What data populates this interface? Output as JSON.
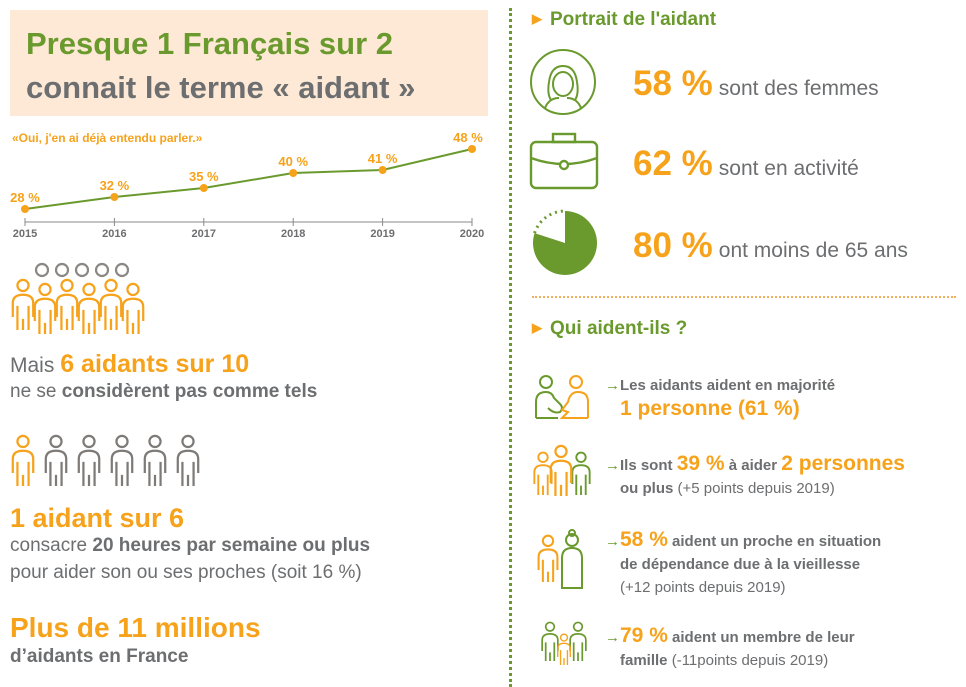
{
  "title": {
    "line1": "Presque 1 Français sur 2",
    "line2": "connait le terme « aidant »"
  },
  "colors": {
    "orange": "#f7a21b",
    "green": "#6a9a2e",
    "gray": "#6d6e70",
    "title_bg": "#fde9d5"
  },
  "chart_data": {
    "type": "line",
    "title": "«Oui, j'en ai déjà entendu parler.»",
    "categories": [
      "2015",
      "2016",
      "2017",
      "2018",
      "2019",
      "2020"
    ],
    "values": [
      28,
      32,
      35,
      40,
      41,
      48
    ],
    "labels": [
      "28 %",
      "32 %",
      "35 %",
      "40 %",
      "41 %",
      "48 %"
    ],
    "grid": false
  },
  "left": {
    "s1": {
      "prefix": "Mais ",
      "highlight": "6 aidants sur 10",
      "line2_prefix": "ne se ",
      "line2_bold": "considèrent pas comme tels",
      "highlighted_fraction": 0.6
    },
    "s2": {
      "headline": "1 aidant sur 6",
      "l1_prefix": "consacre ",
      "l1_bold": "20 heures par semaine ou plus",
      "l2": "pour aider son ou ses proches (soit 16 %)",
      "highlighted_fraction": 0.1667
    },
    "s3": {
      "headline": "Plus de 11 millions",
      "sub": "d’aidants en France"
    }
  },
  "portrait": {
    "heading": "Portrait de l'aidant",
    "stats": [
      {
        "icon": "woman-icon",
        "value": "58 %",
        "text": "sont des femmes"
      },
      {
        "icon": "briefcase-icon",
        "value": "62 %",
        "text": "sont en activité"
      },
      {
        "icon": "pie-icon",
        "value": "80 %",
        "text": "ont moins de 65 ans",
        "fill_fraction": 0.8
      }
    ]
  },
  "qui": {
    "heading": "Qui aident-ils ?",
    "arrow": "→",
    "items": [
      {
        "a": "Les aidants aident en majorité",
        "b": "1 personne (61 %)"
      },
      {
        "a": "Ils sont ",
        "b": "39 %",
        "c": " à aider ",
        "d": "2 personnes",
        "e": "ou plus",
        "f": " (+5 points depuis 2019)"
      },
      {
        "a": "58 %",
        "b": " aident un proche en situation",
        "c": "de dépendance due à la vieillesse",
        "d": "(+12 points depuis 2019)"
      },
      {
        "a": "79 %",
        "b": " aident un membre de leur",
        "c": "famille",
        "d": " (-11points depuis 2019)"
      }
    ]
  }
}
